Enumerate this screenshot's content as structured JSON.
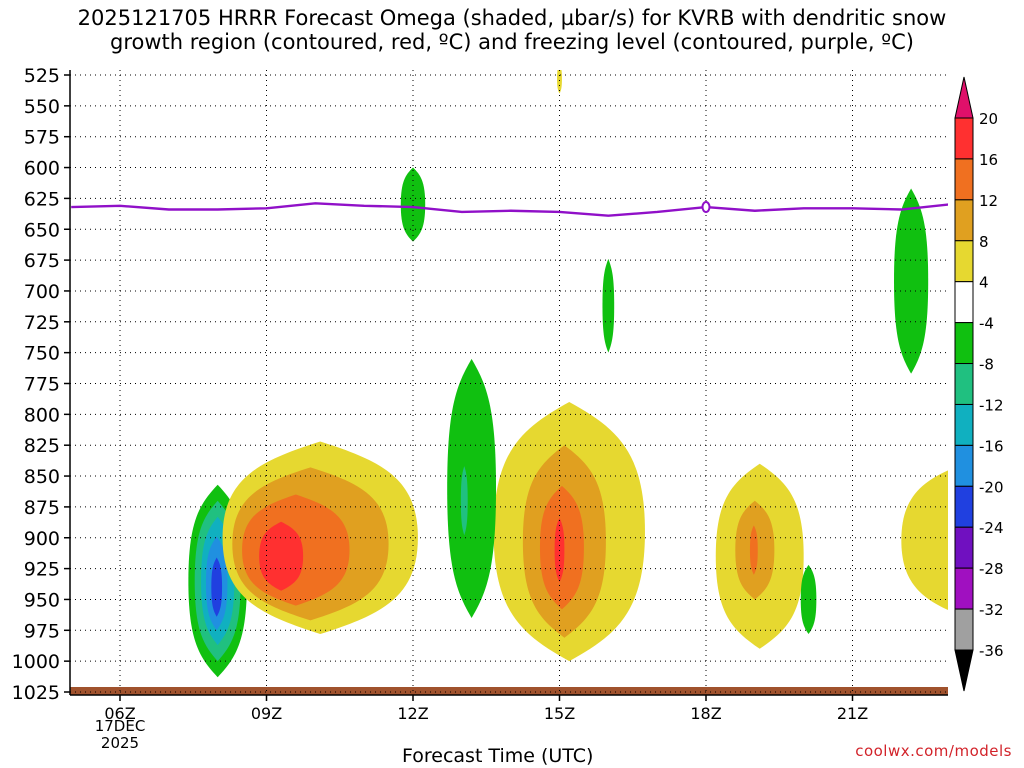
{
  "chart_data": {
    "type": "heatmap",
    "title_line1": "2025121705 HRRR Forecast Omega (shaded, µbar/s) for KVRB with dendritic snow",
    "title_line2": "growth region (contoured, red, ºC) and freezing level (contoured, purple, ºC)",
    "xlabel": "Forecast Time (UTC)",
    "ylabel": "",
    "y_ticks": [
      525,
      550,
      575,
      600,
      625,
      650,
      675,
      700,
      725,
      750,
      775,
      800,
      825,
      850,
      875,
      900,
      925,
      950,
      975,
      1000,
      1025
    ],
    "y_range": [
      525,
      1025
    ],
    "x_range": [
      5,
      23.2
    ],
    "x_ticks": [
      {
        "hour": 6,
        "label": "06Z"
      },
      {
        "hour": 9,
        "label": "09Z"
      },
      {
        "hour": 12,
        "label": "12Z"
      },
      {
        "hour": 15,
        "label": "15Z"
      },
      {
        "hour": 18,
        "label": "18Z"
      },
      {
        "hour": 21,
        "label": "21Z"
      }
    ],
    "date_label_day": "17DEC",
    "date_label_year": "2025",
    "grid": "dotted",
    "colorbar": {
      "labels": [
        "20",
        "16",
        "12",
        "8",
        "4",
        "-4",
        "-8",
        "-12",
        "-16",
        "-20",
        "-24",
        "-28",
        "-32",
        "-36"
      ],
      "colors": [
        "#ff3030",
        "#f07020",
        "#e0a020",
        "#e6d830",
        "#ffffff",
        "#10c010",
        "#20c080",
        "#10b0c0",
        "#2090e0",
        "#2040e0",
        "#7010c0",
        "#a010c0",
        "#a0a0a0"
      ],
      "over_color": "#e0106a",
      "under_color": "#000000"
    },
    "freezing_level": {
      "hours": [
        5,
        6,
        7,
        8,
        9,
        10,
        11,
        12,
        13,
        14,
        15,
        16,
        17,
        18,
        19,
        20,
        21,
        22,
        23.2
      ],
      "pressure": [
        632,
        631,
        634,
        634,
        633,
        629,
        631,
        632,
        636,
        635,
        636,
        639,
        636,
        632,
        635,
        633,
        633,
        634,
        629
      ]
    },
    "omega_regions": [
      {
        "name": "neg-8h-outer",
        "hour": 8.0,
        "p": 935,
        "hw": 0.6,
        "hh": 78,
        "value": -6,
        "color": "#10c010"
      },
      {
        "name": "neg-8h-l2",
        "hour": 8.0,
        "p": 935,
        "hw": 0.47,
        "hh": 65,
        "value": -10,
        "color": "#20c080"
      },
      {
        "name": "neg-8h-l3",
        "hour": 8.0,
        "p": 935,
        "hw": 0.34,
        "hh": 52,
        "value": -14,
        "color": "#10b0c0"
      },
      {
        "name": "neg-8h-l4",
        "hour": 7.98,
        "p": 937,
        "hw": 0.22,
        "hh": 38,
        "value": -18,
        "color": "#2090e0"
      },
      {
        "name": "neg-8h-core",
        "hour": 7.98,
        "p": 940,
        "hw": 0.11,
        "hh": 24,
        "value": -22,
        "color": "#2040e0"
      },
      {
        "name": "pos-10h-outer",
        "hour": 10.1,
        "p": 900,
        "hw": 2.0,
        "hh": 78,
        "value": 5,
        "color": "#e6d830"
      },
      {
        "name": "pos-10h-l2",
        "hour": 9.9,
        "p": 905,
        "hw": 1.6,
        "hh": 62,
        "value": 9,
        "color": "#e0a020"
      },
      {
        "name": "pos-10h-l3",
        "hour": 9.6,
        "p": 910,
        "hw": 1.1,
        "hh": 45,
        "value": 13,
        "color": "#f07020"
      },
      {
        "name": "pos-10h-core",
        "hour": 9.3,
        "p": 915,
        "hw": 0.45,
        "hh": 28,
        "value": 17,
        "color": "#ff3030"
      },
      {
        "name": "pos-15h-outer",
        "hour": 15.2,
        "p": 895,
        "hw": 1.55,
        "hh": 105,
        "value": 5,
        "color": "#e6d830"
      },
      {
        "name": "pos-15h-l2",
        "hour": 15.1,
        "p": 903,
        "hw": 0.85,
        "hh": 78,
        "value": 9,
        "color": "#e0a020"
      },
      {
        "name": "pos-15h-l3",
        "hour": 15.05,
        "p": 908,
        "hw": 0.45,
        "hh": 50,
        "value": 13,
        "color": "#f07020"
      },
      {
        "name": "pos-15h-core",
        "hour": 15.0,
        "p": 910,
        "hw": 0.1,
        "hh": 26,
        "value": 17,
        "color": "#ff3030"
      },
      {
        "name": "pos-19h-outer",
        "hour": 19.1,
        "p": 915,
        "hw": 0.9,
        "hh": 75,
        "value": 5,
        "color": "#e6d830"
      },
      {
        "name": "pos-19h-l2",
        "hour": 19.0,
        "p": 910,
        "hw": 0.4,
        "hh": 40,
        "value": 9,
        "color": "#e0a020"
      },
      {
        "name": "pos-19h-core",
        "hour": 18.98,
        "p": 910,
        "hw": 0.08,
        "hh": 20,
        "value": 13,
        "color": "#f07020"
      },
      {
        "name": "pos-23h-edge",
        "hour": 23.5,
        "p": 902,
        "hw": 1.5,
        "hh": 65,
        "value": 5,
        "color": "#e6d830"
      },
      {
        "name": "pos-15h-spike",
        "hour": 15.0,
        "p": 528,
        "hw": 0.05,
        "hh": 12,
        "value": 5,
        "color": "#e6d830"
      },
      {
        "name": "neg-13h-outer",
        "hour": 13.2,
        "p": 860,
        "hw": 0.5,
        "hh": 105,
        "value": -6,
        "color": "#10c010"
      },
      {
        "name": "neg-13h-core",
        "hour": 13.05,
        "p": 870,
        "hw": 0.07,
        "hh": 28,
        "value": -10,
        "color": "#20c080"
      },
      {
        "name": "neg-12h",
        "hour": 12.0,
        "p": 630,
        "hw": 0.25,
        "hh": 30,
        "value": -6,
        "color": "#10c010"
      },
      {
        "name": "neg-16h",
        "hour": 16.0,
        "p": 712,
        "hw": 0.12,
        "hh": 38,
        "value": -6,
        "color": "#10c010"
      },
      {
        "name": "neg-20h",
        "hour": 20.1,
        "p": 950,
        "hw": 0.16,
        "hh": 28,
        "value": -6,
        "color": "#10c010"
      },
      {
        "name": "neg-22h",
        "hour": 22.2,
        "p": 692,
        "hw": 0.35,
        "hh": 75,
        "value": -6,
        "color": "#10c010"
      }
    ]
  },
  "credit": "coolwx.com/models"
}
